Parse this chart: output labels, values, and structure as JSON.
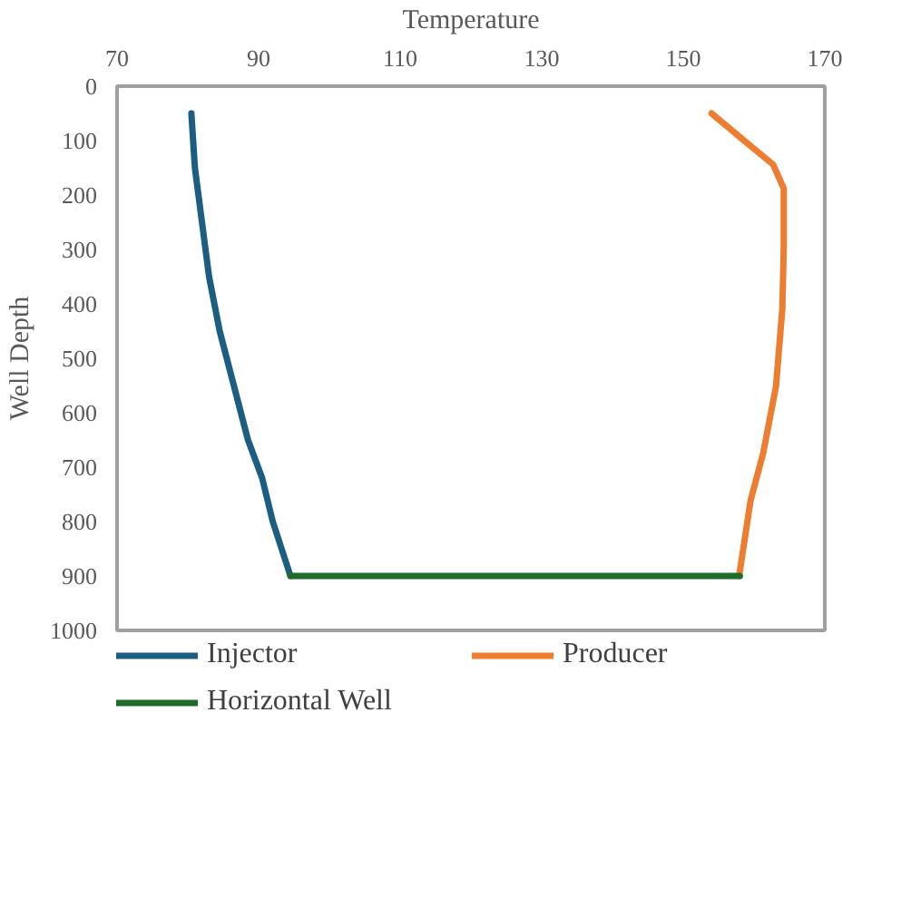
{
  "chart_data": {
    "type": "line",
    "xlabel": "Temperature",
    "ylabel": "Well Depth",
    "xlim": [
      70,
      170
    ],
    "xticks": [
      70,
      90,
      110,
      130,
      150,
      170
    ],
    "ylim": [
      1000,
      0
    ],
    "yticks": [
      0,
      100,
      200,
      300,
      400,
      500,
      600,
      700,
      800,
      900,
      1000
    ],
    "grid": false,
    "legend": "bottom",
    "marker": "none",
    "line_style": "solid",
    "series": [
      {
        "name": "Injector",
        "color": "#1b5e82",
        "x": [
          80.5,
          81,
          82,
          83,
          84.5,
          86.5,
          88.5,
          90.5,
          92,
          94.5
        ],
        "values": [
          50,
          150,
          250,
          350,
          450,
          550,
          650,
          720,
          800,
          900
        ]
      },
      {
        "name": "Producer",
        "color": "#ed7d31",
        "x": [
          154,
          158.6,
          162.7,
          164.2,
          164.2,
          164,
          163.1,
          161.3,
          159.5,
          157.9
        ],
        "values": [
          50,
          100,
          144,
          188,
          298,
          409,
          552,
          674,
          762,
          900
        ]
      },
      {
        "name": "Horizontal Well",
        "color": "#1e6b2a",
        "x": [
          94.5,
          158
        ],
        "values": [
          900,
          900
        ]
      }
    ]
  }
}
